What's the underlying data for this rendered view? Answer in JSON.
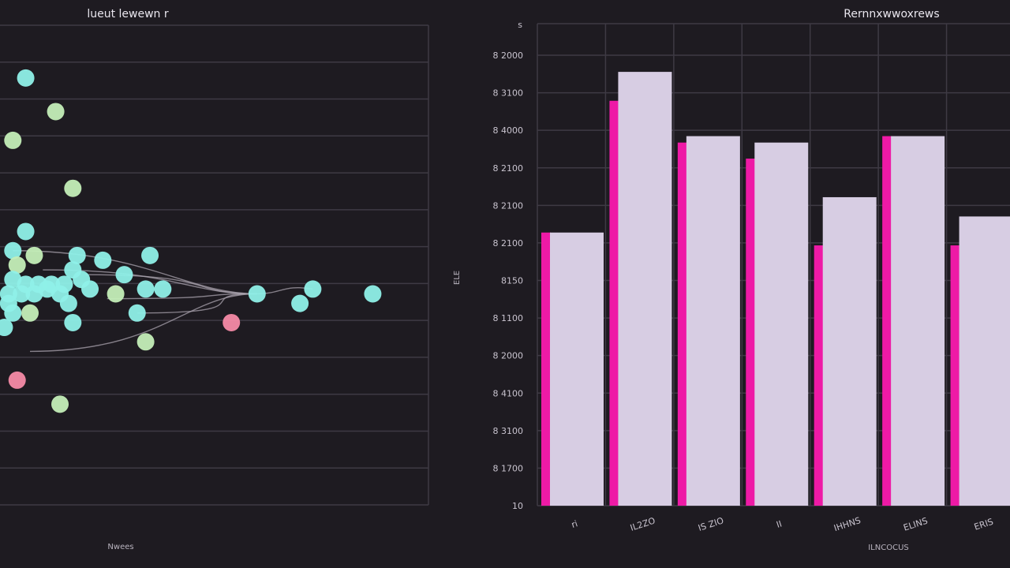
{
  "colors": {
    "background": "#1e1b21",
    "grid": "#3e3a44",
    "bar_fill": "#d7cde3",
    "bar_accent": "#ee1aa6",
    "point_cyan": "#8ff0e8",
    "point_green": "#c4eeb8",
    "point_pink": "#f58aa6",
    "curve": "#a9a3ae"
  },
  "left_panel": {
    "title": "lueut lewewn r",
    "xlabel": "Nwees"
  },
  "right_panel": {
    "title": "Rernnxwwoxrews",
    "ylabel": "ELE",
    "xlabel": "ILNCOCUS"
  },
  "chart_data": [
    {
      "type": "scatter",
      "title": "lueut lewewn r",
      "xlabel": "Nwees",
      "ylabel": "",
      "xlim": [
        0,
        1
      ],
      "ylim": [
        0,
        1
      ],
      "grid": true,
      "points": [
        {
          "x": 0.06,
          "y": 0.89,
          "color": "cyan"
        },
        {
          "x": 0.13,
          "y": 0.82,
          "color": "green"
        },
        {
          "x": 0.03,
          "y": 0.76,
          "color": "green"
        },
        {
          "x": 0.17,
          "y": 0.66,
          "color": "green"
        },
        {
          "x": 0.06,
          "y": 0.57,
          "color": "cyan"
        },
        {
          "x": 0.03,
          "y": 0.53,
          "color": "cyan"
        },
        {
          "x": 0.08,
          "y": 0.52,
          "color": "green"
        },
        {
          "x": 0.18,
          "y": 0.52,
          "color": "cyan"
        },
        {
          "x": 0.24,
          "y": 0.51,
          "color": "cyan"
        },
        {
          "x": 0.35,
          "y": 0.52,
          "color": "cyan"
        },
        {
          "x": 0.04,
          "y": 0.5,
          "color": "green"
        },
        {
          "x": 0.17,
          "y": 0.49,
          "color": "cyan"
        },
        {
          "x": 0.29,
          "y": 0.48,
          "color": "cyan"
        },
        {
          "x": 0.03,
          "y": 0.47,
          "color": "cyan"
        },
        {
          "x": 0.06,
          "y": 0.46,
          "color": "cyan"
        },
        {
          "x": 0.09,
          "y": 0.46,
          "color": "cyan"
        },
        {
          "x": 0.12,
          "y": 0.46,
          "color": "cyan"
        },
        {
          "x": 0.15,
          "y": 0.46,
          "color": "cyan"
        },
        {
          "x": 0.19,
          "y": 0.47,
          "color": "cyan"
        },
        {
          "x": 0.02,
          "y": 0.44,
          "color": "cyan"
        },
        {
          "x": 0.05,
          "y": 0.44,
          "color": "cyan"
        },
        {
          "x": 0.08,
          "y": 0.44,
          "color": "cyan"
        },
        {
          "x": 0.11,
          "y": 0.45,
          "color": "cyan"
        },
        {
          "x": 0.14,
          "y": 0.44,
          "color": "cyan"
        },
        {
          "x": 0.21,
          "y": 0.45,
          "color": "cyan"
        },
        {
          "x": 0.27,
          "y": 0.44,
          "color": "green"
        },
        {
          "x": 0.34,
          "y": 0.45,
          "color": "cyan"
        },
        {
          "x": 0.38,
          "y": 0.45,
          "color": "cyan"
        },
        {
          "x": 0.6,
          "y": 0.44,
          "color": "cyan"
        },
        {
          "x": 0.73,
          "y": 0.45,
          "color": "cyan"
        },
        {
          "x": 0.87,
          "y": 0.44,
          "color": "cyan"
        },
        {
          "x": 0.02,
          "y": 0.42,
          "color": "cyan"
        },
        {
          "x": 0.16,
          "y": 0.42,
          "color": "cyan"
        },
        {
          "x": 0.7,
          "y": 0.42,
          "color": "cyan"
        },
        {
          "x": 0.03,
          "y": 0.4,
          "color": "cyan"
        },
        {
          "x": 0.07,
          "y": 0.4,
          "color": "green"
        },
        {
          "x": 0.32,
          "y": 0.4,
          "color": "cyan"
        },
        {
          "x": 0.17,
          "y": 0.38,
          "color": "cyan"
        },
        {
          "x": 0.54,
          "y": 0.38,
          "color": "pink"
        },
        {
          "x": 0.01,
          "y": 0.37,
          "color": "cyan"
        },
        {
          "x": 0.34,
          "y": 0.34,
          "color": "green"
        },
        {
          "x": 0.04,
          "y": 0.26,
          "color": "pink"
        },
        {
          "x": 0.14,
          "y": 0.21,
          "color": "green"
        }
      ]
    },
    {
      "type": "bar",
      "title": "Rernnxwwoxrews",
      "xlabel": "ILNCOCUS",
      "ylabel": "ELE",
      "categories": [
        "ri",
        "IL2ZO",
        "IS ZIO",
        "II",
        "IHHNS",
        "ELINS",
        "ERIS"
      ],
      "values": [
        8.55,
        9.05,
        8.85,
        8.83,
        8.66,
        8.85,
        8.6
      ],
      "accent_values": [
        8.55,
        8.96,
        8.83,
        8.78,
        8.51,
        8.85,
        8.51
      ],
      "y_ticks": [
        "8 2000",
        "8 3100",
        "8 4000",
        "8 2100",
        "8 2100",
        "8 2100",
        "8150",
        "8 1100",
        "8 2000",
        "8 4100",
        "8 3100",
        "8 1700",
        "10"
      ],
      "y_top_label": "s",
      "ylim": [
        7.7,
        9.2
      ],
      "grid": true
    }
  ]
}
